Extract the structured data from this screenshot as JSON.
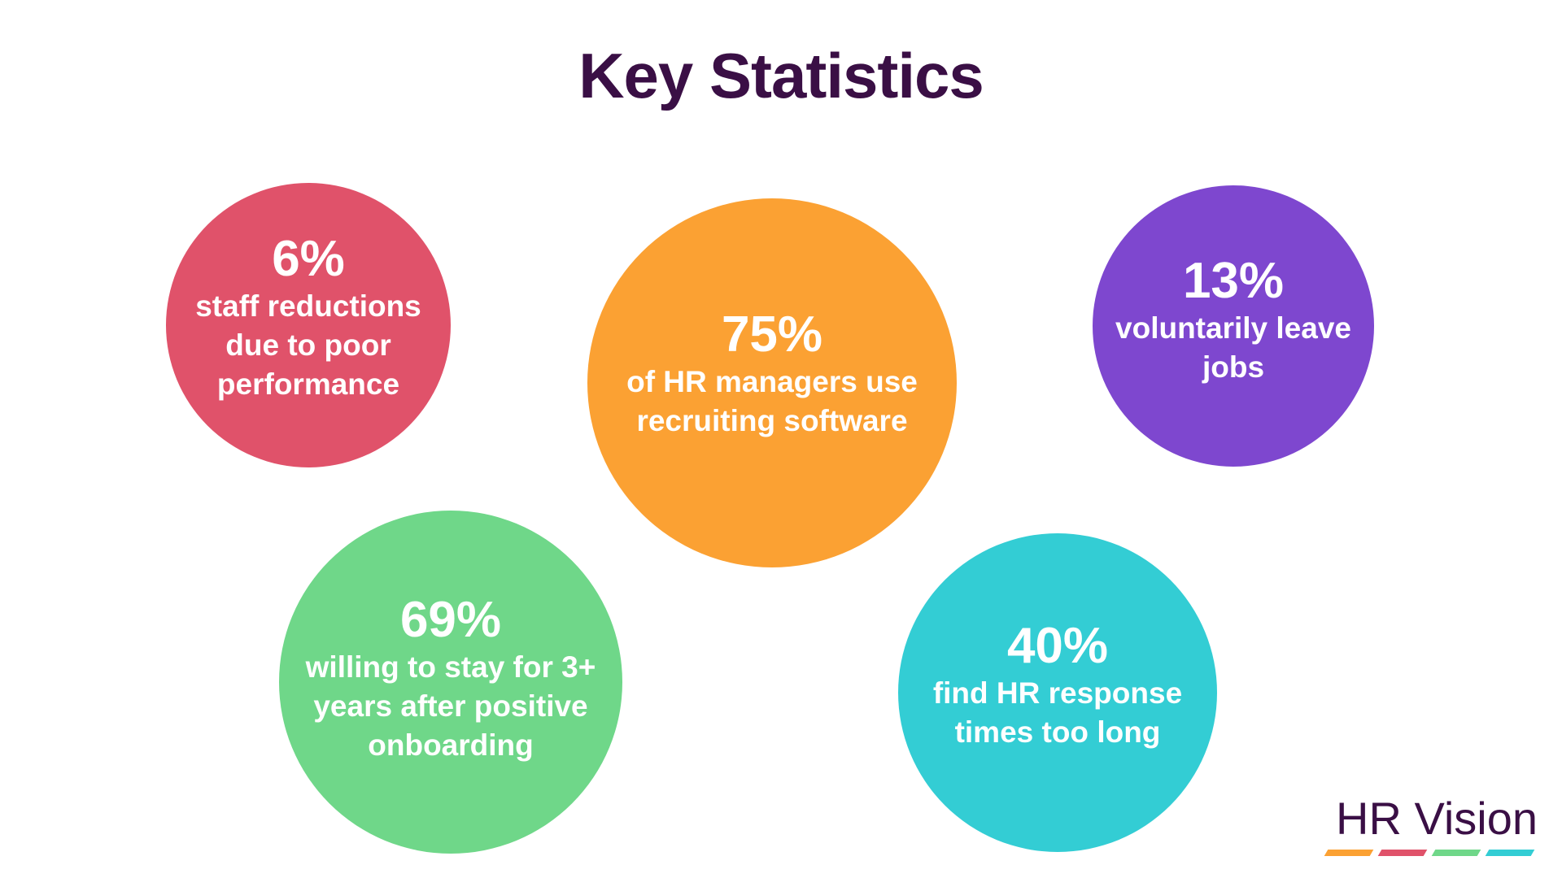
{
  "title": "Key Statistics",
  "colors": {
    "title": "#3a0f45",
    "logo_text": "#3a0f45"
  },
  "stats": [
    {
      "value": "6%",
      "description": "staff reductions due to poor performance",
      "color": "#e0526a"
    },
    {
      "value": "75%",
      "description": "of HR managers use recruiting software",
      "color": "#fba133"
    },
    {
      "value": "13%",
      "description": "voluntarily leave jobs",
      "color": "#7e47cf"
    },
    {
      "value": "69%",
      "description": "willing to stay for 3+ years after positive onboarding",
      "color": "#6fd789"
    },
    {
      "value": "40%",
      "description": "find HR response times too long",
      "color": "#33cdd4"
    }
  ],
  "logo": {
    "text": "HR Vision",
    "bar_colors": [
      "#fba133",
      "#e0526a",
      "#6fd789",
      "#33cdd4"
    ]
  }
}
